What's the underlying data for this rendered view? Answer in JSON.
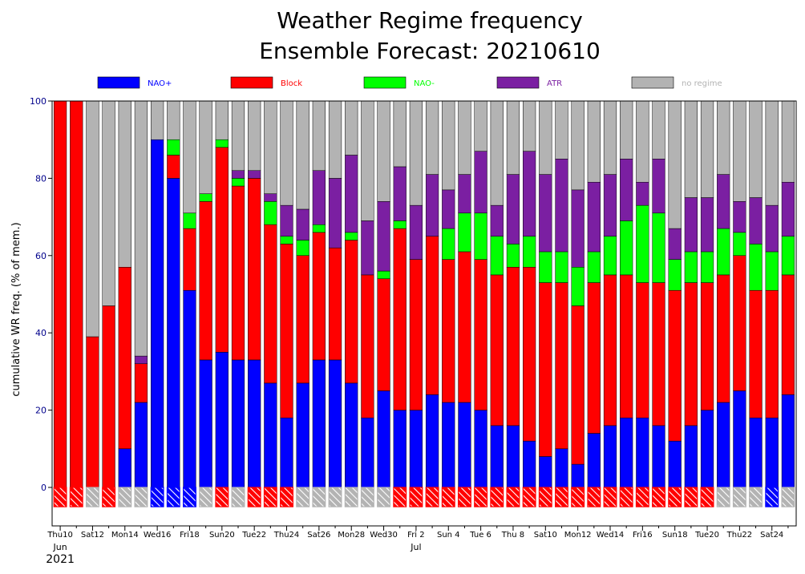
{
  "chart_data": {
    "type": "bar",
    "stacked": true,
    "title": "Weather Regime frequency",
    "subtitle": "Ensemble Forecast: 20210610",
    "ylabel": "cumulative WR freq. (% of mem.)",
    "ylim": [
      -10,
      100
    ],
    "yticks": [
      0,
      20,
      40,
      60,
      80,
      100
    ],
    "grid": false,
    "legend_position": "top",
    "x_month_labels": [
      {
        "label": "Jun",
        "at_day": 0
      },
      {
        "label": "Jul",
        "at_day": 22
      }
    ],
    "x_year_label": "2021",
    "x_tick_labels": [
      {
        "day": 0,
        "label": "Thu10",
        "weekend": false
      },
      {
        "day": 2,
        "label": "Sat12",
        "weekend": false
      },
      {
        "day": 4,
        "label": "Mon14",
        "weekend": false
      },
      {
        "day": 6,
        "label": "Wed16",
        "weekend": false
      },
      {
        "day": 8,
        "label": "Fri18",
        "weekend": false
      },
      {
        "day": 10,
        "label": "Sun20",
        "weekend": true
      },
      {
        "day": 12,
        "label": "Tue22",
        "weekend": false
      },
      {
        "day": 14,
        "label": "Thu24",
        "weekend": false
      },
      {
        "day": 16,
        "label": "Sat26",
        "weekend": false
      },
      {
        "day": 18,
        "label": "Mon28",
        "weekend": false
      },
      {
        "day": 20,
        "label": "Wed30",
        "weekend": false
      },
      {
        "day": 22,
        "label": "Fri 2",
        "weekend": false
      },
      {
        "day": 24,
        "label": "Sun 4",
        "weekend": true
      },
      {
        "day": 26,
        "label": "Tue 6",
        "weekend": false
      },
      {
        "day": 28,
        "label": "Thu 8",
        "weekend": false
      },
      {
        "day": 30,
        "label": "Sat10",
        "weekend": false
      },
      {
        "day": 32,
        "label": "Mon12",
        "weekend": false
      },
      {
        "day": 34,
        "label": "Wed14",
        "weekend": false
      },
      {
        "day": 36,
        "label": "Fri16",
        "weekend": false
      },
      {
        "day": 38,
        "label": "Sun18",
        "weekend": true
      },
      {
        "day": 40,
        "label": "Tue20",
        "weekend": false
      },
      {
        "day": 42,
        "label": "Thu22",
        "weekend": false
      },
      {
        "day": 44,
        "label": "Sat24",
        "weekend": false
      }
    ],
    "series": [
      {
        "name": "NAO+",
        "color": "#0000ff",
        "values": [
          0,
          0,
          0,
          0,
          10,
          22,
          90,
          80,
          51,
          33,
          35,
          33,
          33,
          27,
          18,
          27,
          33,
          33,
          27,
          18,
          25,
          20,
          20,
          24,
          22,
          22,
          20,
          16,
          16,
          12,
          8,
          10,
          6,
          14,
          16,
          18,
          18,
          16,
          12,
          16,
          20,
          22,
          25,
          18,
          18,
          24
        ]
      },
      {
        "name": "Block",
        "color": "#ff0000",
        "values": [
          100,
          100,
          39,
          47,
          47,
          10,
          0,
          6,
          16,
          41,
          53,
          45,
          47,
          41,
          45,
          33,
          33,
          29,
          37,
          37,
          29,
          47,
          39,
          41,
          37,
          39,
          39,
          39,
          41,
          45,
          45,
          43,
          41,
          39,
          39,
          37,
          35,
          37,
          39,
          37,
          33,
          33,
          35,
          33,
          33,
          31
        ]
      },
      {
        "name": "NAO-",
        "color": "#00ff00",
        "values": [
          0,
          0,
          0,
          0,
          0,
          0,
          0,
          4,
          4,
          2,
          2,
          2,
          0,
          6,
          2,
          4,
          2,
          0,
          2,
          0,
          2,
          2,
          0,
          0,
          8,
          10,
          12,
          10,
          6,
          8,
          8,
          8,
          10,
          8,
          10,
          14,
          20,
          18,
          8,
          8,
          8,
          12,
          6,
          12,
          10,
          10
        ]
      },
      {
        "name": "ATR",
        "color": "#7b1fa2",
        "values": [
          0,
          0,
          0,
          0,
          0,
          2,
          0,
          0,
          0,
          0,
          0,
          2,
          2,
          2,
          8,
          8,
          14,
          18,
          20,
          14,
          18,
          14,
          14,
          16,
          10,
          10,
          16,
          8,
          18,
          22,
          20,
          24,
          20,
          18,
          16,
          16,
          6,
          14,
          8,
          14,
          14,
          14,
          8,
          12,
          12,
          14
        ]
      },
      {
        "name": "no regime",
        "color": "#b3b3b3",
        "values": [
          0,
          0,
          61,
          53,
          43,
          66,
          10,
          10,
          29,
          24,
          10,
          18,
          18,
          24,
          27,
          28,
          18,
          20,
          14,
          31,
          26,
          17,
          27,
          19,
          23,
          19,
          13,
          27,
          19,
          13,
          19,
          15,
          23,
          21,
          19,
          15,
          21,
          15,
          33,
          25,
          25,
          19,
          26,
          25,
          27,
          21
        ]
      }
    ],
    "day_regime_markers": [
      "Block",
      "Block",
      "no regime",
      "Block",
      "no regime",
      "no regime",
      "NAO+",
      "NAO+",
      "NAO+",
      "no regime",
      "Block",
      "no regime",
      "Block",
      "Block",
      "Block",
      "no regime",
      "no regime",
      "no regime",
      "no regime",
      "no regime",
      "no regime",
      "Block",
      "Block",
      "Block",
      "Block",
      "Block",
      "Block",
      "Block",
      "Block",
      "Block",
      "Block",
      "Block",
      "Block",
      "Block",
      "Block",
      "Block",
      "Block",
      "Block",
      "Block",
      "Block",
      "Block",
      "no regime",
      "no regime",
      "no regime",
      "NAO+",
      "no regime"
    ]
  }
}
